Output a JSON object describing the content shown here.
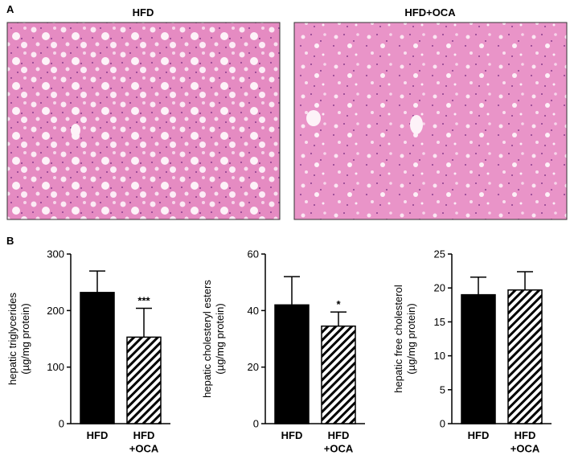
{
  "panel_labels": [
    "A",
    "B"
  ],
  "images": [
    {
      "title": "HFD"
    },
    {
      "title": "HFD+OCA"
    }
  ],
  "chart_data": [
    {
      "type": "bar",
      "ylabel": "hepatic triglycerides\n(µg/mg protein)",
      "categories": [
        "HFD",
        "HFD\n+OCA"
      ],
      "values": [
        232,
        153
      ],
      "errors": [
        38,
        51
      ],
      "color": "#000000",
      "hatched": [
        false,
        true
      ],
      "annotations": [
        null,
        "***"
      ],
      "ylim": [
        0,
        300
      ],
      "yticks": [
        0,
        100,
        200,
        300
      ]
    },
    {
      "type": "bar",
      "ylabel": "hepatic cholesteryl esters\n(µg/mg protein)",
      "categories": [
        "HFD",
        "HFD\n+OCA"
      ],
      "values": [
        42,
        34.5
      ],
      "errors": [
        10,
        5
      ],
      "color": "#000000",
      "hatched": [
        false,
        true
      ],
      "annotations": [
        null,
        "*"
      ],
      "ylim": [
        0,
        60
      ],
      "yticks": [
        0,
        20,
        40,
        60
      ]
    },
    {
      "type": "bar",
      "ylabel": "hepatic free cholesterol\n(µg/mg protein)",
      "categories": [
        "HFD",
        "HFD\n+OCA"
      ],
      "values": [
        19,
        19.7
      ],
      "errors": [
        2.6,
        2.7
      ],
      "color": "#000000",
      "hatched": [
        false,
        true
      ],
      "annotations": [
        null,
        null
      ],
      "ylim": [
        0,
        25
      ],
      "yticks": [
        0,
        5,
        10,
        15,
        20,
        25
      ]
    }
  ]
}
